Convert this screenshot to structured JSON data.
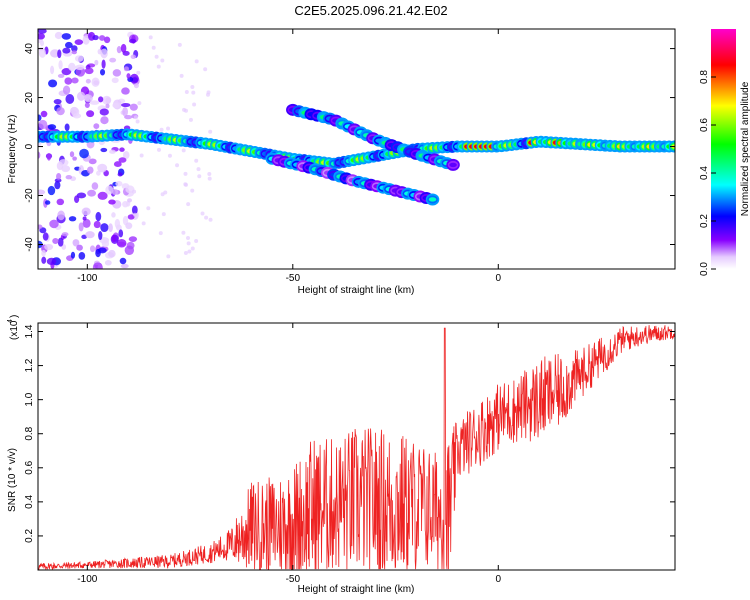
{
  "title": "C2E5.2025.096.21.42.E02",
  "chart_data": [
    {
      "type": "heatmap",
      "xlabel": "Height of straight line (km)",
      "ylabel": "Frequency (Hz)",
      "xlim": [
        -112,
        43
      ],
      "ylim": [
        -50,
        48
      ],
      "x_ticks": [
        -100,
        -50,
        0
      ],
      "y_ticks": [
        -40,
        -20,
        0,
        20,
        40
      ],
      "colorbar": {
        "label": "Normalized spectral amplitude",
        "range": [
          0.0,
          1.0
        ],
        "ticks": [
          0.0,
          0.2,
          0.4,
          0.6,
          0.8
        ],
        "colors": [
          "#ffffff",
          "#e6ccff",
          "#8800ff",
          "#0000ff",
          "#00ffff",
          "#00ff00",
          "#ffff00",
          "#ff0000",
          "#ff00cc"
        ]
      },
      "features": [
        {
          "name": "noise",
          "x_range": [
            -112,
            -88
          ],
          "freq_range": [
            -50,
            48
          ]
        },
        {
          "name": "main ridge",
          "points": [
            [
              -112,
              4
            ],
            [
              -100,
              4
            ],
            [
              -90,
              5
            ],
            [
              -80,
              3
            ],
            [
              -70,
              1
            ],
            [
              -60,
              -2
            ],
            [
              -50,
              -5
            ],
            [
              -40,
              -7
            ],
            [
              -30,
              -4
            ],
            [
              -20,
              -1
            ],
            [
              -10,
              0
            ],
            [
              0,
              0
            ],
            [
              10,
              2
            ],
            [
              20,
              1
            ],
            [
              30,
              0
            ],
            [
              43,
              0
            ]
          ]
        },
        {
          "name": "branch 1",
          "points": [
            [
              -50,
              15
            ],
            [
              -40,
              11
            ],
            [
              -30,
              3
            ],
            [
              -20,
              -3
            ],
            [
              -10,
              -8
            ]
          ]
        },
        {
          "name": "branch 2",
          "points": [
            [
              -55,
              -5
            ],
            [
              -45,
              -9
            ],
            [
              -35,
              -14
            ],
            [
              -25,
              -18
            ],
            [
              -15,
              -22
            ]
          ]
        }
      ]
    },
    {
      "type": "line",
      "xlabel": "Height of straight line (km)",
      "ylabel": "SNR (10 * v/v)",
      "y_scale_label": "(x10",
      "y_scale_exp": "4",
      "xlim": [
        -112,
        43
      ],
      "ylim": [
        0,
        1.45
      ],
      "x_ticks": [
        -100,
        -50,
        0
      ],
      "y_ticks": [
        0.2,
        0.4,
        0.6,
        0.8,
        1.0,
        1.2,
        1.4
      ],
      "series": [
        {
          "color": "#ee2222",
          "x": [
            -112,
            -100,
            -90,
            -80,
            -70,
            -65,
            -60,
            -55,
            -50,
            -45,
            -40,
            -35,
            -30,
            -25,
            -20,
            -15,
            -12,
            -10,
            -5,
            0,
            5,
            10,
            15,
            20,
            25,
            30,
            35,
            43
          ],
          "mean": [
            0.02,
            0.03,
            0.04,
            0.05,
            0.1,
            0.15,
            0.25,
            0.25,
            0.28,
            0.35,
            0.38,
            0.4,
            0.4,
            0.38,
            0.38,
            0.35,
            0.3,
            0.7,
            0.8,
            0.9,
            0.95,
            1.0,
            1.05,
            1.15,
            1.25,
            1.35,
            1.38,
            1.4
          ],
          "amp": [
            0.02,
            0.02,
            0.03,
            0.04,
            0.06,
            0.1,
            0.28,
            0.3,
            0.35,
            0.45,
            0.4,
            0.45,
            0.45,
            0.45,
            0.4,
            0.35,
            0.5,
            0.18,
            0.2,
            0.2,
            0.2,
            0.25,
            0.22,
            0.15,
            0.12,
            0.08,
            0.06,
            0.04
          ],
          "peak": [
            -13,
            1.42
          ]
        }
      ]
    }
  ]
}
